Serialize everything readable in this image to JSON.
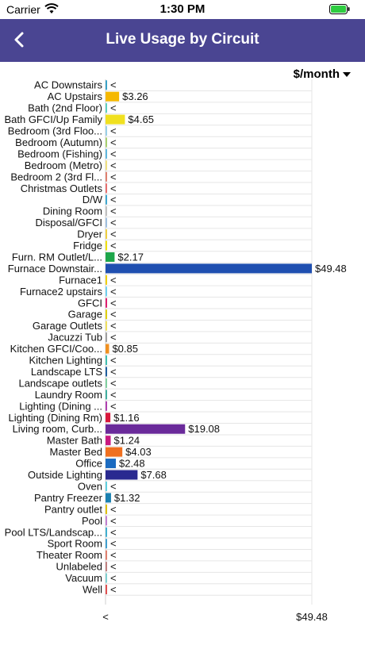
{
  "status": {
    "carrier": "Carrier",
    "time": "1:30 PM",
    "wifi_icon": "wifi-icon",
    "battery_icon": "battery-icon"
  },
  "nav": {
    "title": "Live Usage by Circuit",
    "back_icon": "chevron-left-icon"
  },
  "unit_selector": {
    "label": "$/month"
  },
  "chart_data": {
    "type": "bar",
    "orientation": "horizontal",
    "xlim": [
      0,
      49.48
    ],
    "x_tick_labels": [
      "<",
      "$49.48"
    ],
    "grid": true,
    "categories": [
      "AC Downstairs",
      "AC Upstairs",
      "Bath (2nd Floor)",
      "Bath GFCI/Up Family",
      "Bedroom (3rd Floo...",
      "Bedroom (Autumn)",
      "Bedroom (Fishing)",
      "Bedroom (Metro)",
      "Bedroom 2 (3rd Fl...",
      "Christmas Outlets",
      "D/W",
      "Dining Room",
      "Disposal/GFCI",
      "Dryer",
      "Fridge",
      "Furn. RM Outlet/L...",
      "Furnace Downstair...",
      "Furnace1",
      "Furnace2 upstairs",
      "GFCI",
      "Garage",
      "Garage Outlets",
      "Jacuzzi Tub",
      "Kitchen GFCI/Coo...",
      "Kitchen Lighting",
      "Landscape LTS",
      "Landscape outlets",
      "Laundry Room",
      "Lighting (Dining ...",
      "Lighting (Dining Rm)",
      "Living room, Curb...",
      "Master Bath",
      "Master Bed",
      "Office",
      "Outside Lighting",
      "Oven",
      "Pantry Freezer",
      "Pantry outlet",
      "Pool",
      "Pool LTS/Landscap...",
      "Sport Room",
      "Theater Room",
      "Unlabeled",
      "Vacuum",
      "Well"
    ],
    "values": [
      0,
      3.26,
      0,
      4.65,
      0,
      0,
      0,
      0,
      0,
      0,
      0,
      0,
      0,
      0,
      0,
      2.17,
      49.48,
      0,
      0,
      0,
      0,
      0,
      0,
      0.85,
      0,
      0,
      0,
      0,
      0,
      1.16,
      19.08,
      1.24,
      4.03,
      2.48,
      7.68,
      0,
      1.32,
      0,
      0,
      0,
      0,
      0,
      0,
      0,
      0
    ],
    "value_labels": [
      "<",
      "$3.26",
      "<",
      "$4.65",
      "<",
      "<",
      "<",
      "<",
      "<",
      "<",
      "<",
      "<",
      "<",
      "<",
      "<",
      "$2.17",
      "$49.48",
      "<",
      "<",
      "<",
      "<",
      "<",
      "<",
      "$0.85",
      "<",
      "<",
      "<",
      "<",
      "<",
      "$1.16",
      "$19.08",
      "$1.24",
      "$4.03",
      "$2.48",
      "$7.68",
      "<",
      "$1.32",
      "<",
      "<",
      "<",
      "<",
      "<",
      "<",
      "<",
      "<"
    ],
    "colors": [
      "#3aa3c8",
      "#f5b800",
      "#5fd0c0",
      "#f0e020",
      "#9ad0e8",
      "#a8d070",
      "#60b8e0",
      "#f0e080",
      "#e08070",
      "#e87070",
      "#40a8d0",
      "#c0c0c0",
      "#a0c0e0",
      "#f0d040",
      "#f0e000",
      "#1ea64a",
      "#1f4fb0",
      "#f0d000",
      "#70d0f0",
      "#e02070",
      "#e0d000",
      "#f0e060",
      "#a0a0a0",
      "#f09020",
      "#40c0b0",
      "#2060a0",
      "#80d0a0",
      "#40b0a0",
      "#b040b0",
      "#d8183c",
      "#6a2a9a",
      "#c81880",
      "#f07020",
      "#1a6ac0",
      "#2a2a90",
      "#60d0e0",
      "#1a80b0",
      "#e0c000",
      "#c080d0",
      "#40b0d0",
      "#40a0d0",
      "#e08070",
      "#c08080",
      "#80d0d0",
      "#e05050"
    ]
  }
}
